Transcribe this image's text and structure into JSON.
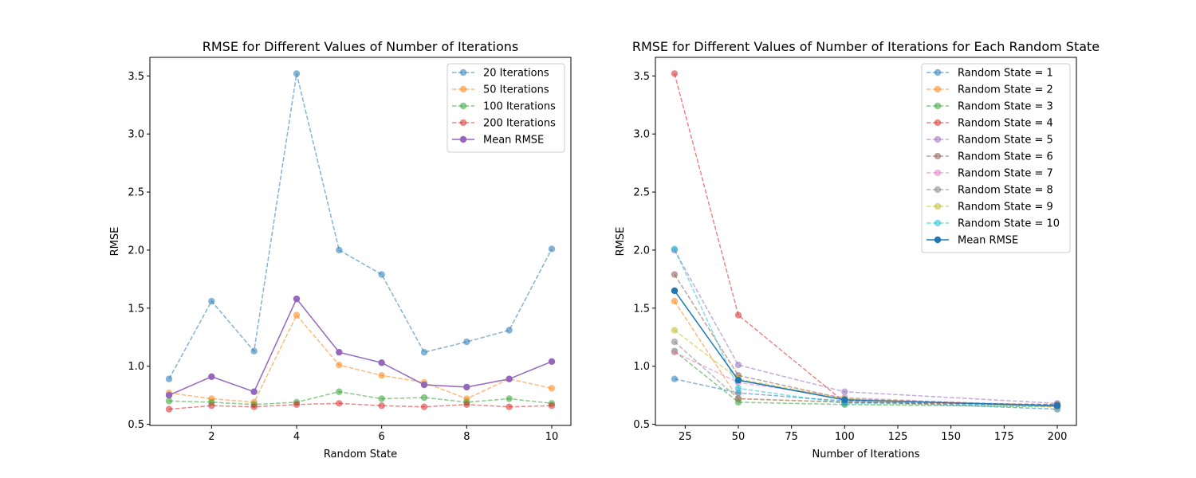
{
  "chart_data": [
    {
      "type": "line",
      "title": "RMSE for Different Values of Number of Iterations",
      "xlabel": "Random State",
      "ylabel": "RMSE",
      "xlim": [
        0.55,
        10.45
      ],
      "ylim": [
        0.49,
        3.66
      ],
      "xticks": [
        2,
        4,
        6,
        8,
        10
      ],
      "yticks": [
        0.5,
        1.0,
        1.5,
        2.0,
        2.5,
        3.0,
        3.5
      ],
      "xtick_labels": [
        "2",
        "4",
        "6",
        "8",
        "10"
      ],
      "ytick_labels": [
        "0.5",
        "1.0",
        "1.5",
        "2.0",
        "2.5",
        "3.0",
        "3.5"
      ],
      "legend_position": "top-right",
      "x": [
        1,
        2,
        3,
        4,
        5,
        6,
        7,
        8,
        9,
        10
      ],
      "series": [
        {
          "name": "20 Iterations",
          "color": "#1f77b4",
          "style": "dashed",
          "values": [
            0.89,
            1.56,
            1.13,
            3.52,
            2.0,
            1.79,
            1.12,
            1.21,
            1.31,
            2.01
          ]
        },
        {
          "name": "50 Iterations",
          "color": "#ff7f0e",
          "style": "dashed",
          "values": [
            0.77,
            0.72,
            0.69,
            1.44,
            1.01,
            0.92,
            0.86,
            0.72,
            0.89,
            0.81
          ]
        },
        {
          "name": "100 Iterations",
          "color": "#2ca02c",
          "style": "dashed",
          "values": [
            0.7,
            0.69,
            0.67,
            0.69,
            0.78,
            0.72,
            0.73,
            0.69,
            0.72,
            0.68
          ]
        },
        {
          "name": "200 Iterations",
          "color": "#d62728",
          "style": "dashed",
          "values": [
            0.63,
            0.66,
            0.65,
            0.67,
            0.68,
            0.66,
            0.65,
            0.67,
            0.65,
            0.66
          ]
        },
        {
          "name": "Mean RMSE",
          "color": "#9467bd",
          "style": "solid",
          "values": [
            0.75,
            0.91,
            0.78,
            1.58,
            1.12,
            1.03,
            0.84,
            0.82,
            0.89,
            1.04
          ]
        }
      ]
    },
    {
      "type": "line",
      "title": "RMSE for Different Values of Number of Iterations for Each Random State",
      "xlabel": "Number of Iterations",
      "ylabel": "RMSE",
      "xlim": [
        11,
        209
      ],
      "ylim": [
        0.49,
        3.66
      ],
      "xticks": [
        25,
        50,
        75,
        100,
        125,
        150,
        175,
        200
      ],
      "yticks": [
        0.5,
        1.0,
        1.5,
        2.0,
        2.5,
        3.0,
        3.5
      ],
      "xtick_labels": [
        "25",
        "50",
        "75",
        "100",
        "125",
        "150",
        "175",
        "200"
      ],
      "ytick_labels": [
        "0.5",
        "1.0",
        "1.5",
        "2.0",
        "2.5",
        "3.0",
        "3.5"
      ],
      "legend_position": "top-right",
      "x": [
        20,
        50,
        100,
        200
      ],
      "series": [
        {
          "name": "Random State = 1",
          "color": "#1f77b4",
          "style": "dashed",
          "values": [
            0.89,
            0.77,
            0.7,
            0.63
          ]
        },
        {
          "name": "Random State = 2",
          "color": "#ff7f0e",
          "style": "dashed",
          "values": [
            1.56,
            0.72,
            0.69,
            0.66
          ]
        },
        {
          "name": "Random State = 3",
          "color": "#2ca02c",
          "style": "dashed",
          "values": [
            1.13,
            0.69,
            0.67,
            0.65
          ]
        },
        {
          "name": "Random State = 4",
          "color": "#d62728",
          "style": "dashed",
          "values": [
            3.52,
            1.44,
            0.69,
            0.67
          ]
        },
        {
          "name": "Random State = 5",
          "color": "#9467bd",
          "style": "dashed",
          "values": [
            2.0,
            1.01,
            0.78,
            0.68
          ]
        },
        {
          "name": "Random State = 6",
          "color": "#8c564b",
          "style": "dashed",
          "values": [
            1.79,
            0.92,
            0.72,
            0.66
          ]
        },
        {
          "name": "Random State = 7",
          "color": "#e377c2",
          "style": "dashed",
          "values": [
            1.12,
            0.86,
            0.73,
            0.65
          ]
        },
        {
          "name": "Random State = 8",
          "color": "#7f7f7f",
          "style": "dashed",
          "values": [
            1.21,
            0.72,
            0.69,
            0.67
          ]
        },
        {
          "name": "Random State = 9",
          "color": "#bcbd22",
          "style": "dashed",
          "values": [
            1.31,
            0.89,
            0.72,
            0.65
          ]
        },
        {
          "name": "Random State = 10",
          "color": "#17becf",
          "style": "dashed",
          "values": [
            2.01,
            0.81,
            0.68,
            0.66
          ]
        },
        {
          "name": "Mean RMSE",
          "color": "#1f77b4",
          "style": "solid",
          "values": [
            1.65,
            0.88,
            0.71,
            0.66
          ]
        }
      ]
    }
  ]
}
